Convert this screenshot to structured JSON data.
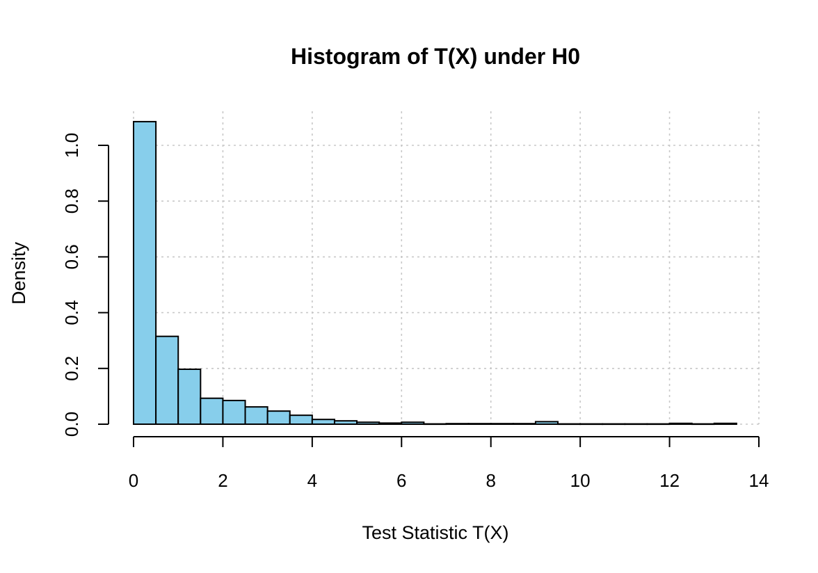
{
  "chart_data": {
    "type": "bar",
    "title": "Histogram of T(X) under H0",
    "xlabel": "Test Statistic T(X)",
    "ylabel": "Density",
    "xlim": [
      0,
      14
    ],
    "ylim": [
      0,
      1.08
    ],
    "x_ticks": [
      "0",
      "2",
      "4",
      "6",
      "8",
      "10",
      "12",
      "14"
    ],
    "y_ticks": [
      "0.0",
      "0.2",
      "0.4",
      "0.6",
      "0.8",
      "1.0"
    ],
    "grid": true,
    "bar_color": "#87CEEB",
    "bin_edges": [
      0,
      0.5,
      1,
      1.5,
      2,
      2.5,
      3,
      3.5,
      4,
      4.5,
      5,
      5.5,
      6,
      6.5,
      7,
      7.5,
      8,
      8.5,
      9,
      9.5,
      10,
      10.5,
      11,
      11.5,
      12,
      12.5,
      13,
      13.5
    ],
    "values": [
      1.085,
      0.315,
      0.197,
      0.093,
      0.085,
      0.062,
      0.047,
      0.032,
      0.017,
      0.012,
      0.007,
      0.004,
      0.007,
      0.001,
      0.002,
      0.002,
      0.002,
      0.002,
      0.009,
      0.001,
      0.001,
      0.001,
      0.001,
      0.001,
      0.003,
      0.001,
      0.003
    ]
  }
}
